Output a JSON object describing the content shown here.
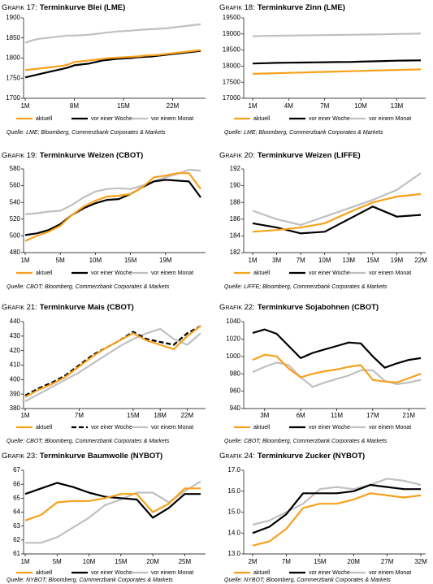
{
  "chart_data": [
    {
      "type": "line",
      "label": "Grafik 17:",
      "title": "Terminkurve Blei (LME)",
      "categories": [
        "1M",
        null,
        null,
        null,
        null,
        null,
        null,
        "8M",
        null,
        null,
        null,
        null,
        null,
        null,
        "15M",
        null,
        null,
        null,
        null,
        null,
        null,
        "22M",
        null,
        null,
        null,
        null
      ],
      "ylim": [
        1700,
        1900
      ],
      "yticks": [
        1700,
        1750,
        1800,
        1850,
        1900
      ],
      "series": [
        {
          "name": "aktuell",
          "color": "#f7a11d",
          "values": [
            1770,
            1772,
            1774,
            1776,
            1778,
            1780,
            1783,
            1790,
            1792,
            1794,
            1796,
            1798,
            1800,
            1801,
            1802,
            1803,
            1804,
            1806,
            1807,
            1808,
            1810,
            1812,
            1814,
            1816,
            1818,
            1820
          ]
        },
        {
          "name": "vor einer Woche",
          "color": "#000000",
          "values": [
            1752,
            1756,
            1760,
            1764,
            1768,
            1772,
            1776,
            1782,
            1784,
            1786,
            1790,
            1794,
            1796,
            1798,
            1799,
            1800,
            1802,
            1803,
            1804,
            1806,
            1808,
            1810,
            1812,
            1814,
            1816,
            1818
          ]
        },
        {
          "name": "vor einem Monat",
          "color": "#c0c0c0",
          "values": [
            1838,
            1844,
            1848,
            1850,
            1852,
            1854,
            1856,
            1856,
            1857,
            1858,
            1860,
            1862,
            1864,
            1866,
            1867,
            1868,
            1870,
            1871,
            1872,
            1873,
            1874,
            1876,
            1878,
            1880,
            1882,
            1884
          ]
        }
      ],
      "source": "Quelle: LME; Bloomberg, Commerzbank Corporates & Markets"
    },
    {
      "type": "line",
      "label": "Grafik 18:",
      "title": "Terminkurve Zinn (LME)",
      "categories": [
        "1M",
        null,
        null,
        "4M",
        null,
        null,
        "7M",
        null,
        null,
        "10M",
        null,
        null,
        "13M",
        null,
        null
      ],
      "ylim": [
        17000,
        19500
      ],
      "yticks": [
        17000,
        17500,
        18000,
        18500,
        19000,
        19500
      ],
      "series": [
        {
          "name": "aktuell",
          "color": "#f7a11d",
          "values": [
            17760,
            17770,
            17780,
            17790,
            17800,
            17810,
            17820,
            17830,
            17840,
            17850,
            17860,
            17870,
            17880,
            17890,
            17900
          ]
        },
        {
          "name": "vor einer Woche",
          "color": "#000000",
          "values": [
            18080,
            18090,
            18100,
            18105,
            18110,
            18115,
            18120,
            18125,
            18130,
            18140,
            18150,
            18160,
            18170,
            18175,
            18180
          ]
        },
        {
          "name": "vor einem Monat",
          "color": "#c0c0c0",
          "values": [
            18930,
            18940,
            18945,
            18950,
            18955,
            18960,
            18965,
            18970,
            18975,
            18980,
            18985,
            18990,
            19000,
            19005,
            19010
          ]
        }
      ],
      "source": "Quelle: LME; Bloomberg, Commerzbank Corporates & Markets"
    },
    {
      "type": "line",
      "label": "Grafik 19:",
      "title": "Terminkurve Weizen (CBOT)",
      "categories": [
        "1M",
        null,
        null,
        "5M",
        null,
        null,
        "10M",
        null,
        null,
        "15M",
        null,
        null,
        "19M",
        null,
        null,
        null
      ],
      "ylim": [
        480,
        580
      ],
      "yticks": [
        480,
        500,
        520,
        540,
        560,
        580
      ],
      "series": [
        {
          "name": "aktuell",
          "color": "#f7a11d",
          "values": [
            494,
            500,
            505,
            512,
            525,
            535,
            542,
            547,
            548,
            550,
            558,
            570,
            572,
            575,
            575,
            556
          ]
        },
        {
          "name": "vor einer Woche",
          "color": "#000000",
          "values": [
            501,
            503,
            507,
            514,
            525,
            533,
            539,
            543,
            544,
            550,
            558,
            565,
            567,
            566,
            565,
            546
          ]
        },
        {
          "name": "vor einem Monat",
          "color": "#c0c0c0",
          "values": [
            526,
            527,
            529,
            530,
            537,
            546,
            553,
            556,
            557,
            556,
            560,
            565,
            570,
            574,
            579,
            578
          ]
        }
      ],
      "source": "Quelle: CBOT; Bloomberg, Commerzbank Corporates & Markets"
    },
    {
      "type": "line",
      "label": "Grafik 20:",
      "title": "Terminkurve Weizen (LIFFE)",
      "categories": [
        "1M",
        "3M",
        "7M",
        "10M",
        "13M",
        "15M",
        "19M",
        "22M"
      ],
      "ylim": [
        182,
        192
      ],
      "yticks": [
        182,
        184,
        186,
        188,
        190,
        192
      ],
      "series": [
        {
          "name": "aktuell",
          "color": "#f7a11d",
          "values": [
            184.5,
            184.7,
            185.0,
            185.5,
            186.8,
            188.0,
            188.7,
            189.0
          ]
        },
        {
          "name": "vor einer Woche",
          "color": "#000000",
          "values": [
            185.5,
            185.0,
            184.3,
            184.5,
            186.0,
            187.5,
            186.3,
            186.5
          ]
        },
        {
          "name": "vor einem Monat",
          "color": "#c0c0c0",
          "values": [
            187.0,
            186.0,
            185.3,
            186.3,
            187.3,
            188.3,
            189.5,
            191.5
          ]
        }
      ],
      "source": "Quelle: LIFFE; Bloomberg, Commerzbank Corporates & Markets"
    },
    {
      "type": "line",
      "label": "Grafik 21:",
      "title": "Terminkurve Mais (CBOT)",
      "categories": [
        "1M",
        null,
        null,
        null,
        "7M",
        null,
        null,
        null,
        "15M",
        null,
        "18M",
        null,
        "22M",
        null
      ],
      "ylim": [
        380,
        440
      ],
      "yticks": [
        380,
        390,
        400,
        410,
        420,
        430,
        440
      ],
      "series": [
        {
          "name": "aktuell",
          "color": "#f7a11d",
          "values": [
            388,
            393,
            397,
            402,
            409,
            416,
            422,
            427,
            432,
            427,
            424,
            421,
            430,
            437
          ]
        },
        {
          "name": "vor einer Woche",
          "color": "#000000",
          "line_style": "dashed",
          "values": [
            389,
            394,
            398,
            403,
            410,
            417,
            422,
            427,
            433,
            428,
            426,
            424,
            432,
            437
          ]
        },
        {
          "name": "vor einem Monat",
          "color": "#c0c0c0",
          "values": [
            385,
            390,
            395,
            400,
            405,
            411,
            417,
            423,
            428,
            432,
            435,
            428,
            424,
            432
          ]
        }
      ],
      "source": "Quelle: CBOT; Bloomberg, Commerzbank Corporates & Markets"
    },
    {
      "type": "line",
      "label": "Grafik 22:",
      "title": "Terminkurve Sojabohnen (CBOT)",
      "categories": [
        null,
        "3M",
        null,
        null,
        "6M",
        null,
        null,
        "11M",
        null,
        null,
        "17M",
        null,
        null,
        "21M",
        null
      ],
      "ylim": [
        940,
        1040
      ],
      "yticks": [
        940,
        960,
        980,
        1000,
        1020,
        1040
      ],
      "series": [
        {
          "name": "aktuell",
          "color": "#f7a11d",
          "values": [
            996,
            1002,
            1000,
            986,
            976,
            980,
            983,
            985,
            988,
            990,
            973,
            971,
            970,
            975,
            980
          ]
        },
        {
          "name": "vor einer Woche",
          "color": "#000000",
          "values": [
            1027,
            1031,
            1026,
            1012,
            998,
            1004,
            1008,
            1012,
            1016,
            1015,
            1000,
            987,
            992,
            996,
            998
          ]
        },
        {
          "name": "vor einem Monat",
          "color": "#c0c0c0",
          "values": [
            982,
            988,
            993,
            990,
            976,
            965,
            970,
            974,
            978,
            984,
            984,
            972,
            968,
            970,
            973
          ]
        }
      ],
      "source": "Quelle: CBOT; Bloomberg, Commerzbank Corporates & Markets"
    },
    {
      "type": "line",
      "label": "Grafik 23:",
      "title": "Terminkurve Baumwolle (NYBOT)",
      "categories": [
        "1M",
        null,
        "5M",
        null,
        "10M",
        null,
        "15M",
        null,
        "20M",
        null,
        "25M",
        null
      ],
      "ylim": [
        61,
        67
      ],
      "yticks": [
        61,
        62,
        63,
        64,
        65,
        66,
        67
      ],
      "series": [
        {
          "name": "aktuell",
          "color": "#f7a11d",
          "values": [
            63.4,
            63.8,
            64.7,
            64.8,
            64.8,
            65.0,
            65.3,
            65.3,
            64.0,
            64.6,
            65.7,
            65.7
          ]
        },
        {
          "name": "vor einer Woche",
          "color": "#000000",
          "values": [
            65.3,
            65.7,
            66.1,
            65.8,
            65.4,
            65.1,
            65.0,
            64.9,
            63.6,
            64.3,
            65.3,
            65.3
          ]
        },
        {
          "name": "vor einem Monat",
          "color": "#c0c0c0",
          "values": [
            61.8,
            61.8,
            62.2,
            62.9,
            63.6,
            64.5,
            64.9,
            65.4,
            65.4,
            64.7,
            65.5,
            66.2
          ]
        }
      ],
      "source": "Quelle: NYBOT; Bloomberg, Commerzbank Corporates & Markets"
    },
    {
      "type": "line",
      "label": "Grafik 24:",
      "title": "Terminkurve Zucker (NYBOT)",
      "categories": [
        "2M",
        null,
        "7M",
        null,
        "15M",
        null,
        "20M",
        null,
        "27M",
        null,
        "32M"
      ],
      "ylim": [
        13,
        17
      ],
      "yticks": [
        {
          "value": 13,
          "label": "13.0"
        },
        {
          "value": 14,
          "label": "14.0"
        },
        {
          "value": 15,
          "label": "15.0"
        },
        {
          "value": 16,
          "label": "16.0"
        },
        {
          "value": 17,
          "label": "17.0"
        }
      ],
      "series": [
        {
          "name": "aktuell",
          "color": "#f7a11d",
          "values": [
            13.4,
            13.6,
            14.2,
            15.2,
            15.4,
            15.4,
            15.6,
            15.9,
            15.8,
            15.7,
            15.8
          ]
        },
        {
          "name": "vor einer Woche",
          "color": "#000000",
          "values": [
            14.0,
            14.3,
            14.9,
            15.9,
            15.9,
            15.9,
            16.0,
            16.3,
            16.2,
            16.1,
            16.1
          ]
        },
        {
          "name": "vor einem Monat",
          "color": "#c0c0c0",
          "values": [
            14.4,
            14.6,
            15.0,
            15.4,
            16.1,
            16.2,
            16.1,
            16.3,
            16.6,
            16.5,
            16.3
          ]
        }
      ],
      "source": "Quelle: NYBOT; Bloomberg, Commerzbank Corporates & Markets"
    }
  ]
}
